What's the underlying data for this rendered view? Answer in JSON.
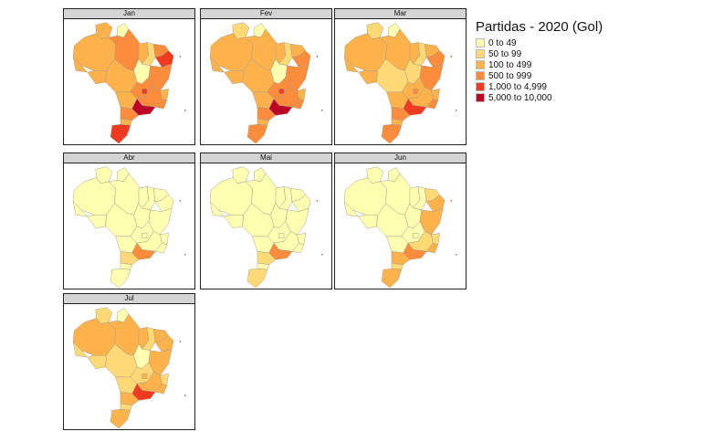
{
  "legend": {
    "title": "Partidas - 2020 (Gol)",
    "classes": [
      {
        "label": "0 to 49",
        "color": "#ffffb2"
      },
      {
        "label": "50 to 99",
        "color": "#fed976"
      },
      {
        "label": "100 to 499",
        "color": "#feb24c"
      },
      {
        "label": "500 to 999",
        "color": "#fd8d3c"
      },
      {
        "label": "1,000 to 4,999",
        "color": "#f03b20"
      },
      {
        "label": "5,000 to 10,000",
        "color": "#bd0026"
      }
    ]
  },
  "panels": [
    {
      "month": "Jan",
      "regions": {
        "rr": 3,
        "ap": 1,
        "am": 3,
        "pa": 4,
        "ma": 3,
        "pi": 2,
        "nordeste_n": 4,
        "nordeste_s": 5,
        "ba": 4,
        "to": 1,
        "ac": 3,
        "ro": 3,
        "mt": 3,
        "go": 4,
        "df": 5,
        "ms": 3,
        "mg": 4,
        "es": 3,
        "rj": 4,
        "sp": 6,
        "pr": 4,
        "sc": 3,
        "rs": 5
      }
    },
    {
      "month": "Fev",
      "regions": {
        "rr": 2,
        "ap": 1,
        "am": 3,
        "pa": 3,
        "ma": 3,
        "pi": 2,
        "nordeste_n": 3,
        "nordeste_s": 4,
        "ba": 4,
        "to": 1,
        "ac": 3,
        "ro": 3,
        "mt": 3,
        "go": 4,
        "df": 5,
        "ms": 3,
        "mg": 4,
        "es": 3,
        "rj": 4,
        "sp": 6,
        "pr": 4,
        "sc": 3,
        "rs": 4
      }
    },
    {
      "month": "Mar",
      "regions": {
        "rr": 2,
        "ap": 1,
        "am": 3,
        "pa": 3,
        "ma": 3,
        "pi": 2,
        "nordeste_n": 3,
        "nordeste_s": 4,
        "ba": 4,
        "to": 2,
        "ac": 3,
        "ro": 3,
        "mt": 2,
        "go": 3,
        "df": 4,
        "ms": 3,
        "mg": 3,
        "es": 3,
        "rj": 4,
        "sp": 5,
        "pr": 4,
        "sc": 3,
        "rs": 4
      }
    },
    {
      "month": "Abr",
      "regions": {
        "rr": 1,
        "ap": 1,
        "am": 1,
        "pa": 1,
        "ma": 1,
        "pi": 1,
        "nordeste_n": 1,
        "nordeste_s": 1,
        "ba": 1,
        "to": 1,
        "ac": 1,
        "ro": 1,
        "mt": 1,
        "go": 1,
        "df": 1,
        "ms": 1,
        "mg": 1,
        "es": 1,
        "rj": 1,
        "sp": 4,
        "pr": 2,
        "sc": 1,
        "rs": 1
      }
    },
    {
      "month": "Mai",
      "regions": {
        "rr": 1,
        "ap": 1,
        "am": 1,
        "pa": 1,
        "ma": 1,
        "pi": 1,
        "nordeste_n": 1,
        "nordeste_s": 1,
        "ba": 1,
        "to": 1,
        "ac": 1,
        "ro": 1,
        "mt": 1,
        "go": 1,
        "df": 1,
        "ms": 1,
        "mg": 1,
        "es": 1,
        "rj": 1,
        "sp": 4,
        "pr": 2,
        "sc": 1,
        "rs": 2
      }
    },
    {
      "month": "Jun",
      "regions": {
        "rr": 1,
        "ap": 1,
        "am": 1,
        "pa": 1,
        "ma": 1,
        "pi": 1,
        "nordeste_n": 2,
        "nordeste_s": 3,
        "ba": 3,
        "to": 1,
        "ac": 1,
        "ro": 1,
        "mt": 1,
        "go": 1,
        "df": 1,
        "ms": 1,
        "mg": 2,
        "es": 2,
        "rj": 3,
        "sp": 4,
        "pr": 3,
        "sc": 2,
        "rs": 3
      }
    },
    {
      "month": "Jul",
      "regions": {
        "rr": 2,
        "ap": 1,
        "am": 3,
        "pa": 3,
        "ma": 3,
        "pi": 2,
        "nordeste_n": 3,
        "nordeste_s": 3,
        "ba": 3,
        "to": 1,
        "ac": 2,
        "ro": 2,
        "mt": 2,
        "go": 2,
        "df": 3,
        "ms": 2,
        "mg": 3,
        "es": 2,
        "rj": 3,
        "sp": 5,
        "pr": 3,
        "sc": 2,
        "rs": 3
      }
    }
  ]
}
